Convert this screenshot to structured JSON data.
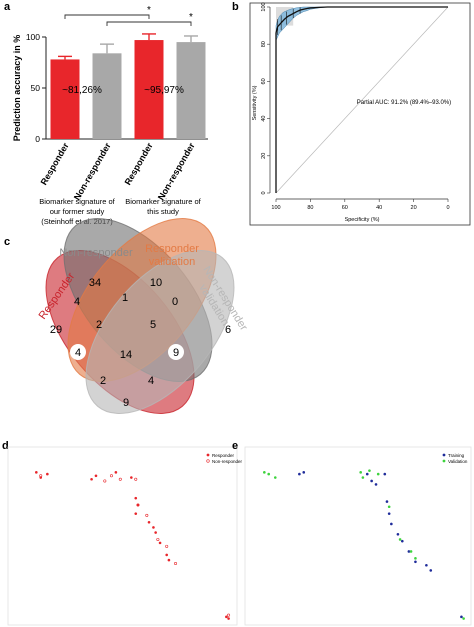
{
  "panel_labels": {
    "a": "a",
    "b": "b",
    "c": "c",
    "d": "d",
    "e": "e"
  },
  "colors": {
    "red": "#e8262b",
    "gray": "#a8a8a8",
    "venn_responder": "#c8232b",
    "venn_nonresponder": "#707070",
    "venn_resp_val": "#e37a44",
    "venn_nonresp_val": "#b6b6b6",
    "training": "#1f2c9a",
    "validation": "#3ed33e"
  },
  "chart_data": [
    {
      "id": "a",
      "type": "bar",
      "ylabel": "Prediction accuracy in %",
      "ylim": [
        0,
        100
      ],
      "yticks": [
        0,
        50,
        100
      ],
      "categories": [
        "Responder",
        "Non-responder",
        "Responder",
        "Non-responder"
      ],
      "values": [
        78,
        84,
        97,
        95
      ],
      "errors": [
        3,
        9,
        6,
        6
      ],
      "bar_colors": [
        "red",
        "gray",
        "red",
        "gray"
      ],
      "annotations": [
        "~81,26%",
        "~95,97%"
      ],
      "significance": [
        "*",
        "*"
      ],
      "group_labels": [
        {
          "lines": [
            "Biomarker signature of",
            "our former study",
            "(Steinhoff et al. 2017)"
          ]
        },
        {
          "lines": [
            "Biomarker signature of",
            "this study"
          ]
        }
      ]
    },
    {
      "id": "b",
      "type": "line",
      "xlabel": "Specificity (%)",
      "ylabel": "Sensitivity (%)",
      "xlim": [
        100,
        0
      ],
      "ylim": [
        0,
        100
      ],
      "xticks": [
        100,
        80,
        60,
        40,
        20,
        0
      ],
      "yticks": [
        0,
        20,
        40,
        60,
        80,
        100
      ],
      "annotation": "Partial AUC: 91.2% (89.4%–93.0%)",
      "roc": {
        "x": [
          100,
          100,
          99.5,
          99,
          98,
          97,
          96,
          95,
          93,
          92,
          90,
          88,
          86,
          84,
          82,
          80,
          75,
          70,
          60,
          50,
          30,
          0
        ],
        "y": [
          0,
          86,
          88,
          89.5,
          90.5,
          91.5,
          92.5,
          93.5,
          95,
          95.5,
          96.5,
          97.5,
          98.3,
          98.8,
          99.2,
          99.5,
          99.8,
          100,
          100,
          100,
          100,
          100
        ]
      },
      "ci_lower": {
        "x": [
          100,
          99,
          98,
          97,
          96,
          95,
          93,
          92,
          90,
          88,
          86,
          84,
          82,
          80,
          75,
          70
        ],
        "y": [
          82,
          84,
          86,
          87,
          88,
          89,
          91,
          92,
          94,
          95.5,
          96.5,
          97.5,
          98,
          98.8,
          99.5,
          100
        ]
      },
      "ci_upper": {
        "x": [
          100,
          99,
          98,
          97,
          96,
          95,
          93,
          92,
          90,
          88,
          86,
          84,
          82,
          80,
          75,
          70
        ],
        "y": [
          90,
          93,
          95,
          96,
          97,
          97.5,
          98.3,
          98.7,
          99.2,
          99.6,
          99.8,
          100,
          100,
          100,
          100,
          100
        ]
      },
      "partial_band": {
        "x_from": 100,
        "x_to": 90,
        "y_from": 90,
        "y_to": 100
      }
    },
    {
      "id": "d",
      "type": "scatter",
      "legend": [
        "Responder",
        "Non-responder"
      ],
      "legend_position": "top-right",
      "series": [
        {
          "name": "Responder",
          "color": "red",
          "marker": "dot",
          "x": [
            0.11,
            0.16,
            0.13,
            0.38,
            0.36,
            0.47,
            0.54,
            0.56,
            0.57,
            0.56,
            0.62,
            0.64,
            0.65,
            0.67,
            0.7,
            0.71,
            0.97,
            0.98
          ],
          "y": [
            0.87,
            0.86,
            0.84,
            0.85,
            0.83,
            0.87,
            0.84,
            0.72,
            0.68,
            0.63,
            0.58,
            0.55,
            0.52,
            0.46,
            0.39,
            0.36,
            0.03,
            0.02
          ]
        },
        {
          "name": "Non-responder",
          "color": "red",
          "marker": "ring",
          "x": [
            0.13,
            0.45,
            0.42,
            0.49,
            0.56,
            0.57,
            0.61,
            0.66,
            0.7,
            0.74,
            0.98
          ],
          "y": [
            0.85,
            0.85,
            0.82,
            0.83,
            0.83,
            0.68,
            0.62,
            0.48,
            0.44,
            0.34,
            0.04
          ]
        }
      ]
    },
    {
      "id": "e",
      "type": "scatter",
      "legend": [
        "Training",
        "Validation"
      ],
      "legend_position": "top-right",
      "series": [
        {
          "name": "Training",
          "color": "training",
          "x": [
            0.23,
            0.25,
            0.54,
            0.56,
            0.58,
            0.62,
            0.63,
            0.64,
            0.65,
            0.68,
            0.7,
            0.73,
            0.76,
            0.81,
            0.83,
            0.97
          ],
          "y": [
            0.86,
            0.87,
            0.86,
            0.82,
            0.8,
            0.86,
            0.7,
            0.63,
            0.57,
            0.51,
            0.47,
            0.41,
            0.35,
            0.33,
            0.3,
            0.03
          ]
        },
        {
          "name": "Validation",
          "color": "validation",
          "x": [
            0.07,
            0.09,
            0.12,
            0.51,
            0.52,
            0.55,
            0.59,
            0.64,
            0.69,
            0.74,
            0.76,
            0.98
          ],
          "y": [
            0.87,
            0.86,
            0.84,
            0.87,
            0.84,
            0.88,
            0.86,
            0.67,
            0.48,
            0.41,
            0.37,
            0.02
          ]
        }
      ]
    }
  ],
  "venn": {
    "set_labels": [
      "Responder",
      "Non-responder",
      "Responder validation",
      "Non-responder validation"
    ],
    "counts": {
      "nr_only": "34",
      "rv_only": "10",
      "r_only": "29",
      "nrv_only": "6",
      "r_nr": "4",
      "nr_rv": "1",
      "rv_nrv": "0",
      "r_nr_rv": "2",
      "nr_rv_nrv": "5",
      "r_rv": "4",
      "nr_nrv": "9",
      "all": "14",
      "r_rv_nrv": "2",
      "r_nr_nrv": "4",
      "r_nrv": "9"
    }
  }
}
